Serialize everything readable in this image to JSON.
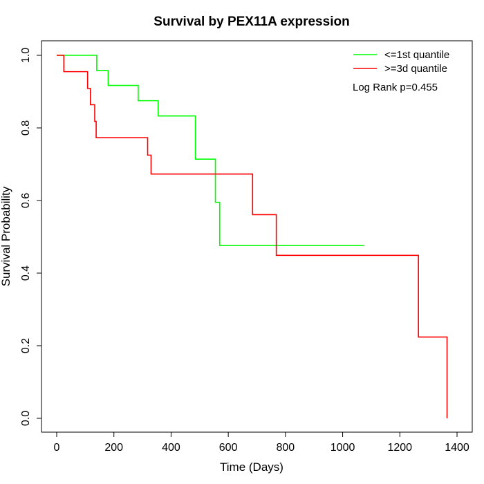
{
  "chart_data": {
    "type": "line",
    "title": "Survival by PEX11A expression",
    "xlabel": "Time (Days)",
    "ylabel": "Survival Probability",
    "xlim": [
      0,
      1400
    ],
    "ylim": [
      0,
      1
    ],
    "x_ticks": [
      "0",
      "200",
      "400",
      "600",
      "800",
      "1000",
      "1200",
      "1400"
    ],
    "y_ticks": [
      "0.0",
      "0.2",
      "0.4",
      "0.6",
      "0.8",
      "1.0"
    ],
    "legend_position": "top-right",
    "annotation": "Log Rank p=0.455",
    "series": [
      {
        "name": "<=1st quantile",
        "color": "#00ff00",
        "step_points": [
          [
            0,
            1.0
          ],
          [
            140,
            0.958
          ],
          [
            180,
            0.917
          ],
          [
            285,
            0.875
          ],
          [
            355,
            0.833
          ],
          [
            485,
            0.714
          ],
          [
            555,
            0.595
          ],
          [
            570,
            0.476
          ],
          [
            1075,
            0.476
          ]
        ]
      },
      {
        "name": ">=3d quantile",
        "color": "#ff0000",
        "step_points": [
          [
            0,
            1.0
          ],
          [
            25,
            0.955
          ],
          [
            108,
            0.909
          ],
          [
            118,
            0.864
          ],
          [
            133,
            0.818
          ],
          [
            138,
            0.773
          ],
          [
            318,
            0.725
          ],
          [
            330,
            0.673
          ],
          [
            685,
            0.561
          ],
          [
            768,
            0.449
          ],
          [
            1265,
            0.224
          ],
          [
            1365,
            0.0
          ]
        ]
      }
    ]
  }
}
